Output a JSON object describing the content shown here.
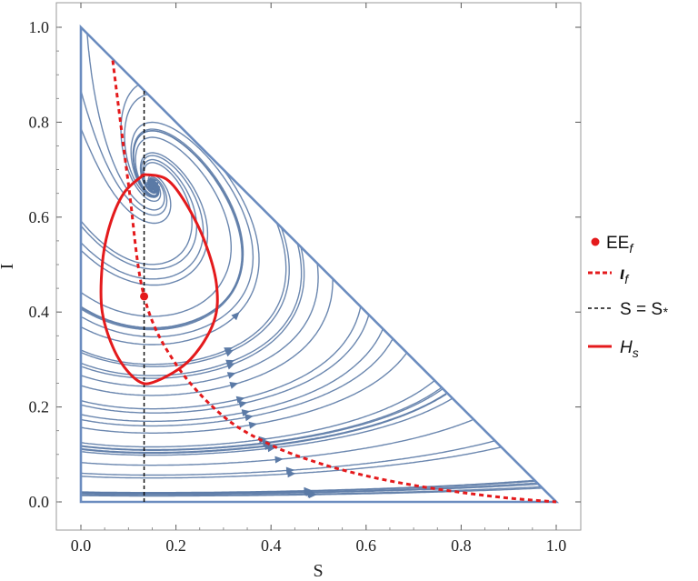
{
  "chart_data": {
    "type": "phase-portrait",
    "xlabel": "S",
    "ylabel": "I",
    "xlim": [
      0.0,
      1.0
    ],
    "ylim": [
      0.0,
      1.0
    ],
    "xticks": [
      "0.0",
      "0.2",
      "0.4",
      "0.6",
      "0.8",
      "1.0"
    ],
    "yticks": [
      "0.0",
      "0.2",
      "0.4",
      "0.6",
      "0.8",
      "1.0"
    ],
    "simplex_boundary": [
      [
        0,
        0
      ],
      [
        1,
        0
      ],
      [
        0,
        1
      ]
    ],
    "equilibrium": {
      "name": "EE_f",
      "S": 0.133,
      "I": 0.433
    },
    "nullcline_iota_f": [
      [
        0.067,
        0.93
      ],
      [
        0.1,
        0.67
      ],
      [
        0.133,
        0.433
      ],
      [
        0.2,
        0.29
      ],
      [
        0.3,
        0.18
      ],
      [
        0.4,
        0.12
      ],
      [
        0.5,
        0.082
      ],
      [
        0.6,
        0.055
      ],
      [
        0.7,
        0.035
      ],
      [
        0.8,
        0.02
      ],
      [
        0.9,
        0.008
      ],
      [
        1.0,
        0.0
      ]
    ],
    "vertical_line_S_star": {
      "S": 0.133,
      "I_range": [
        0.0,
        0.87
      ]
    },
    "closed_curve_H_s": [
      [
        0.133,
        0.69
      ],
      [
        0.18,
        0.68
      ],
      [
        0.22,
        0.63
      ],
      [
        0.26,
        0.55
      ],
      [
        0.285,
        0.46
      ],
      [
        0.28,
        0.38
      ],
      [
        0.23,
        0.3
      ],
      [
        0.16,
        0.255
      ],
      [
        0.12,
        0.255
      ],
      [
        0.075,
        0.31
      ],
      [
        0.045,
        0.4
      ],
      [
        0.045,
        0.5
      ],
      [
        0.06,
        0.58
      ],
      [
        0.09,
        0.65
      ],
      [
        0.133,
        0.69
      ]
    ],
    "legend": [
      {
        "label": "EE",
        "sub": "f",
        "style": "red-dot"
      },
      {
        "label": "ι",
        "sub": "f",
        "style": "red-dashed"
      },
      {
        "label": "S = S",
        "sub": "*",
        "style": "black-dashed"
      },
      {
        "label": "H",
        "sub": "s",
        "style": "red-solid"
      }
    ],
    "legend_position": "right",
    "colors": {
      "stream": "#5b7aa6",
      "frame": "#6b8cbf",
      "red": "#e41a1c",
      "black": "#111111"
    }
  }
}
